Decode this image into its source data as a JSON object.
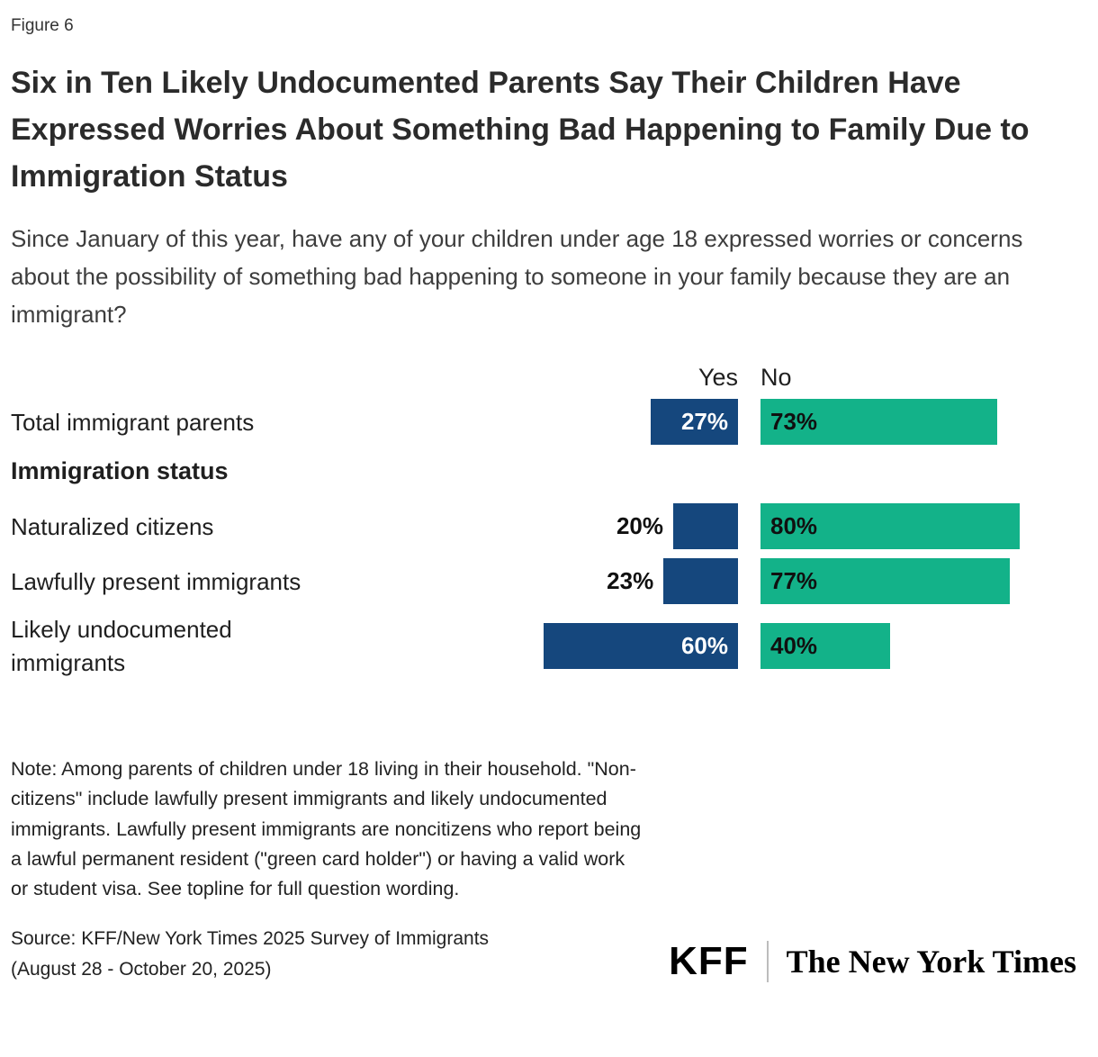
{
  "figure_label": "Figure 6",
  "title": "Six in Ten Likely Undocumented Parents Say Their Children Have Expressed Worries About Something Bad Happening to Family Due to Immigration Status",
  "subtitle": "Since January of this year, have any of your children under age 18 expressed worries or concerns about the possibility of something bad happening to someone in your family because they are an immigrant?",
  "chart_data": {
    "type": "bar",
    "orientation": "horizontal",
    "unit": "percent",
    "xlim": [
      0,
      100
    ],
    "grid": false,
    "legend_position": "column-headers-top",
    "col_headers": {
      "yes": "Yes",
      "no": "No"
    },
    "section_header": "Immigration status",
    "colors": {
      "yes": "#15477d",
      "no": "#13b289"
    },
    "categories": [
      "Total immigrant parents",
      "Naturalized citizens",
      "Lawfully present immigrants",
      "Likely undocumented immigrants"
    ],
    "series": [
      {
        "name": "Yes",
        "values": [
          27,
          20,
          23,
          60
        ]
      },
      {
        "name": "No",
        "values": [
          73,
          80,
          77,
          40
        ]
      }
    ],
    "rows": [
      {
        "label": "Total immigrant parents",
        "yes": 27,
        "no": 73,
        "yes_label": "27%",
        "no_label": "73%",
        "yes_label_position": "inside"
      },
      {
        "label": "Naturalized citizens",
        "yes": 20,
        "no": 80,
        "yes_label": "20%",
        "no_label": "80%",
        "yes_label_position": "outside"
      },
      {
        "label": "Lawfully present immigrants",
        "yes": 23,
        "no": 77,
        "yes_label": "23%",
        "no_label": "77%",
        "yes_label_position": "outside"
      },
      {
        "label": "Likely undocumented\nimmigrants",
        "yes": 60,
        "no": 40,
        "yes_label": "60%",
        "no_label": "40%",
        "yes_label_position": "inside"
      }
    ]
  },
  "note": "Note: Among parents of children under 18 living in their household. \"Non-citizens\" include lawfully present immigrants and likely undocumented immigrants. Lawfully present immigrants are noncitizens who report being a lawful permanent resident (\"green card holder\") or having a valid work or student visa. See topline for full question wording.",
  "source": "Source: KFF/New York Times 2025 Survey of Immigrants\n(August 28 - October 20, 2025)",
  "logos": {
    "kff": "KFF",
    "nyt": "The New York Times"
  }
}
